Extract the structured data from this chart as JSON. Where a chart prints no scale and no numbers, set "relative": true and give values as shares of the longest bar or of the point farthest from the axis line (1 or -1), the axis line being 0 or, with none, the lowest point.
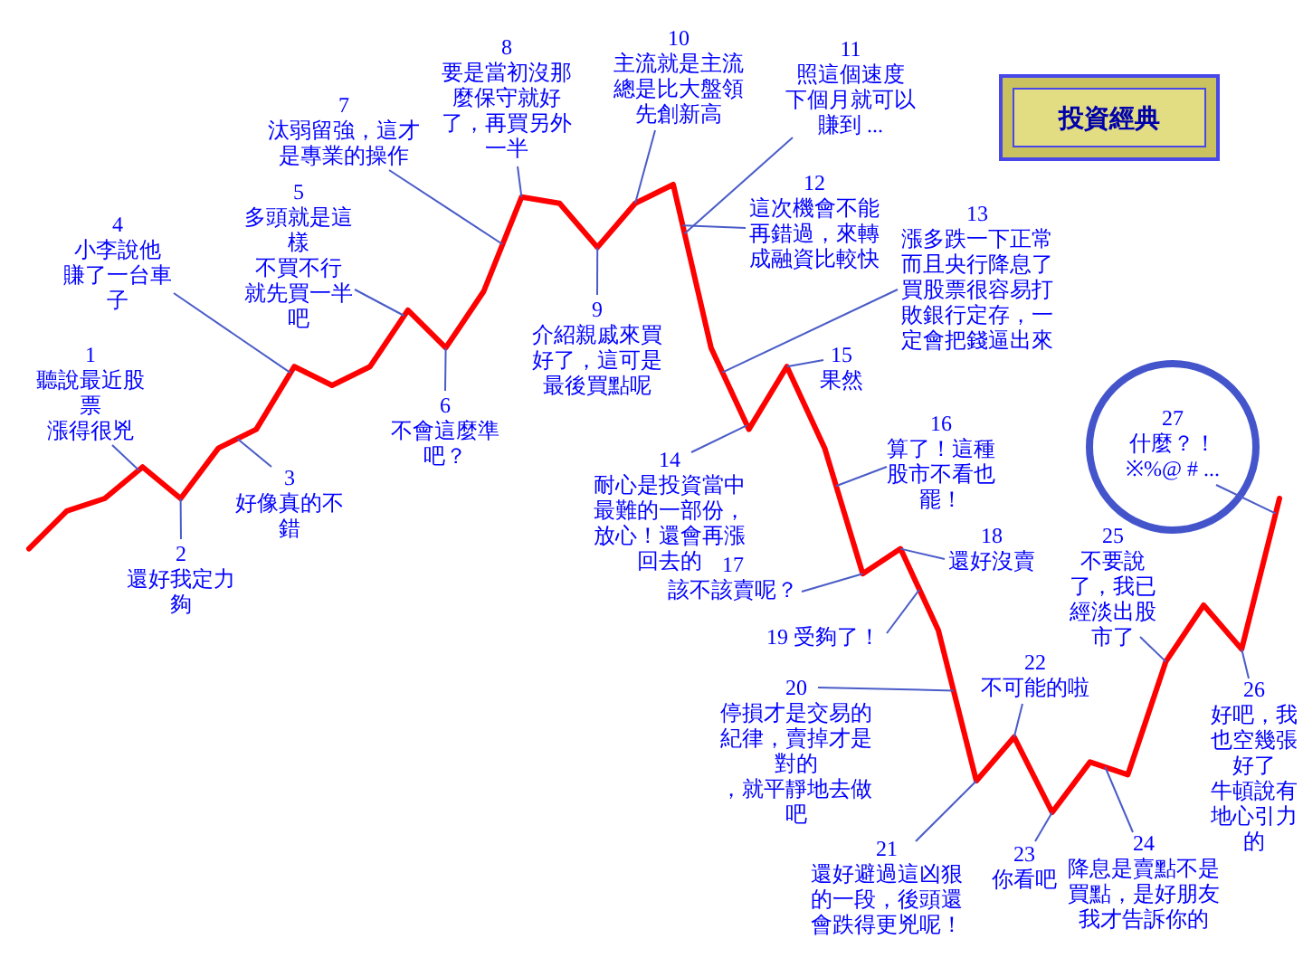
{
  "chart_data": {
    "type": "line",
    "title": "投資經典",
    "relative": true,
    "categories": [
      null,
      null,
      null,
      null,
      null,
      null,
      null,
      null,
      null,
      null,
      null,
      null,
      null,
      null,
      null,
      null,
      null,
      null,
      null,
      null,
      null,
      null,
      null,
      null,
      null,
      null,
      null,
      null,
      null,
      null,
      null,
      null,
      null,
      null
    ],
    "series": [
      {
        "color": "#ff0000",
        "values": [
          0.42,
          0.48,
          0.5,
          0.55,
          0.5,
          0.58,
          0.61,
          0.71,
          0.68,
          0.71,
          0.8,
          0.74,
          0.83,
          0.98,
          0.97,
          0.9,
          0.97,
          1,
          0.74,
          0.61,
          0.71,
          0.58,
          0.38,
          0.42,
          0.29,
          0.05,
          0.12,
          0,
          0.08,
          0.06,
          0.24,
          0.33,
          0.26,
          0.5
        ]
      }
    ],
    "annotations": [
      "1\n聽說最近股票漲得很兇",
      "2\n還好我定力夠",
      "3\n好像真的不錯",
      "4\n小李說他賺了一台車子",
      "5\n多頭就是這樣不買不行就先買一半吧",
      "6\n不會這麼準吧？",
      "7\n汰弱留強，這才是專業的操作",
      "8\n要是當初沒那麼保守就好了，再買另外一半",
      "9\n介紹親戚來買好了，這可是最後買點呢",
      "10\n主流就是主流總是比大盤領先創新高",
      "11\n照這個速度下個月就可以賺到 ...",
      "12\n這次機會不能再錯過，來轉成融資比較快",
      "13\n漲多跌一下正常而且央行降息了買股票很容易打敗銀行定存，一定會把錢逼出來",
      "14\n耐心是投資當中最難的一部份，放心！還會再漲回去的",
      "15\n果然",
      "16\n算了！這種股市不看也罷！",
      "17\n該不該賣呢？",
      "18\n還好沒賣",
      "19 受夠了！",
      "20\n停損才是交易的紀律，賣掉才是對的，就平靜地去做吧",
      "21\n還好避過這凶狠的一段，後頭還會跌得更兇呢！",
      "22\n不可能的啦",
      "23\n你看吧",
      "24\n降息是賣點不是買點，是好朋友我才告訴你的",
      "25\n不要說了，我已經淡出股市了",
      "26\n好吧，我也空幾張好了牛頓說有地心引力的",
      "27\n什麼？！※%@ # ..."
    ]
  }
}
